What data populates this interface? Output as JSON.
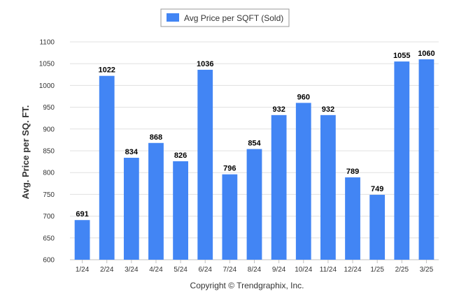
{
  "chart_data": {
    "type": "bar",
    "categories": [
      "1/24",
      "2/24",
      "3/24",
      "4/24",
      "5/24",
      "6/24",
      "7/24",
      "8/24",
      "9/24",
      "10/24",
      "11/24",
      "12/24",
      "1/25",
      "2/25",
      "3/25"
    ],
    "series": [
      {
        "name": "Avg Price per SQFT (Sold)",
        "values": [
          691,
          1022,
          834,
          868,
          826,
          1036,
          796,
          854,
          932,
          960,
          932,
          789,
          749,
          1055,
          1060
        ]
      }
    ],
    "ylabel": "Avg. Price per SQ. FT.",
    "xlabel": "",
    "ylim": [
      600,
      1100
    ],
    "yticks": [
      600,
      650,
      700,
      750,
      800,
      850,
      900,
      950,
      1000,
      1050,
      1100
    ],
    "legend_position": "top-center",
    "grid": true,
    "bar_color": "#4285f4",
    "footer": "Copyright © Trendgraphix, Inc."
  }
}
